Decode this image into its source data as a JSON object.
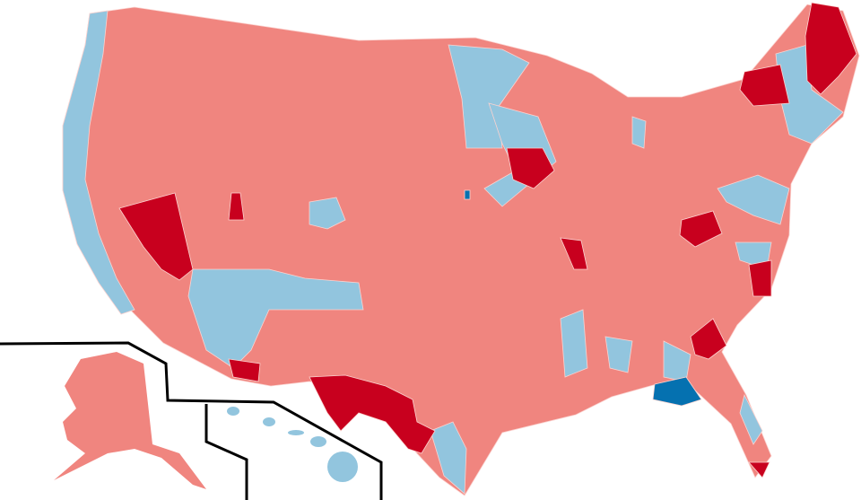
{
  "map": {
    "colors": {
      "background": "#ffffff",
      "light_red": "#f0857f",
      "dark_red": "#c8001e",
      "light_blue": "#92c5de",
      "dark_blue": "#0571b0",
      "border": "#ffffff",
      "inset_line": "#000000"
    },
    "regions": [
      "contiguous-us",
      "alaska",
      "hawaii"
    ]
  }
}
